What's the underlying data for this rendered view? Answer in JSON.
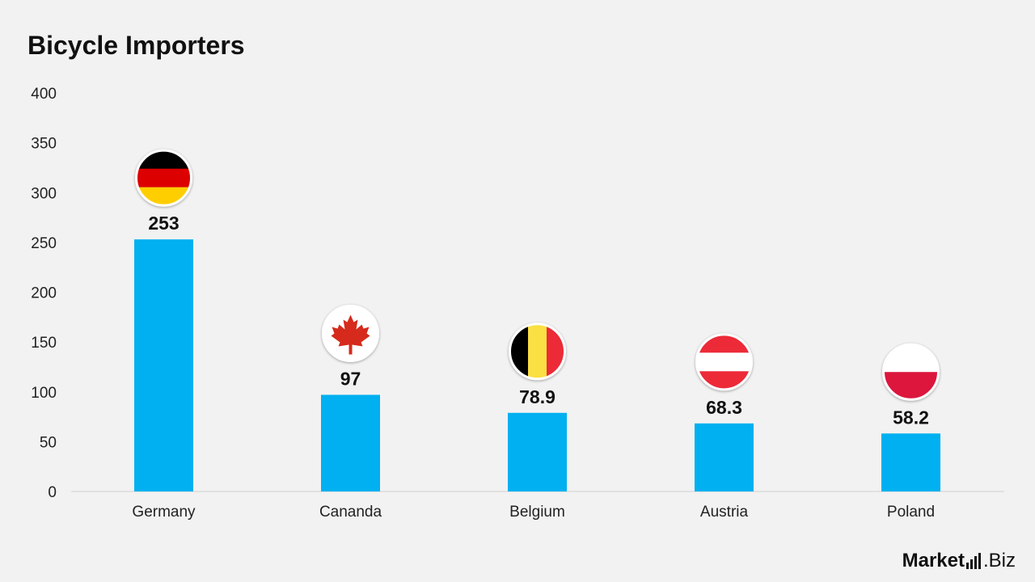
{
  "title": "Bicycle Importers",
  "chart_data": {
    "type": "bar",
    "title": "Bicycle Importers",
    "categories": [
      "Germany",
      "Cananda",
      "Belgium",
      "Austria",
      "Poland"
    ],
    "values": [
      253,
      97,
      78.9,
      68.3,
      58.2
    ],
    "value_labels": [
      "253",
      "97",
      "78.9",
      "68.3",
      "58.2"
    ],
    "flags": [
      "germany-flag",
      "canada-flag",
      "belgium-flag",
      "austria-flag",
      "poland-flag"
    ],
    "ylim": [
      0,
      400
    ],
    "yticks": [
      0,
      50,
      100,
      150,
      200,
      250,
      300,
      350,
      400
    ],
    "grid": false,
    "legend": "none",
    "bar_color": "#00b0f0"
  },
  "logo": {
    "part1": "Market",
    "part2": ".Biz"
  }
}
